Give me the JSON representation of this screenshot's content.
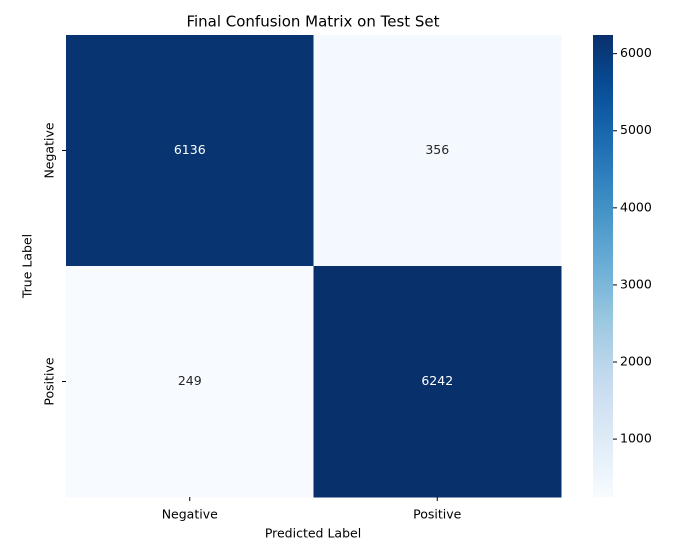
{
  "chart_data": {
    "type": "heatmap",
    "title": "Final Confusion Matrix on Test Set",
    "xlabel": "Predicted Label",
    "ylabel": "True Label",
    "x_categories": [
      "Negative",
      "Positive"
    ],
    "y_categories": [
      "Negative",
      "Positive"
    ],
    "values": [
      [
        6136,
        356
      ],
      [
        249,
        6242
      ]
    ],
    "colormap": "Blues",
    "clim": [
      249,
      6242
    ],
    "cticks": [
      1000,
      2000,
      3000,
      4000,
      5000,
      6000
    ]
  }
}
